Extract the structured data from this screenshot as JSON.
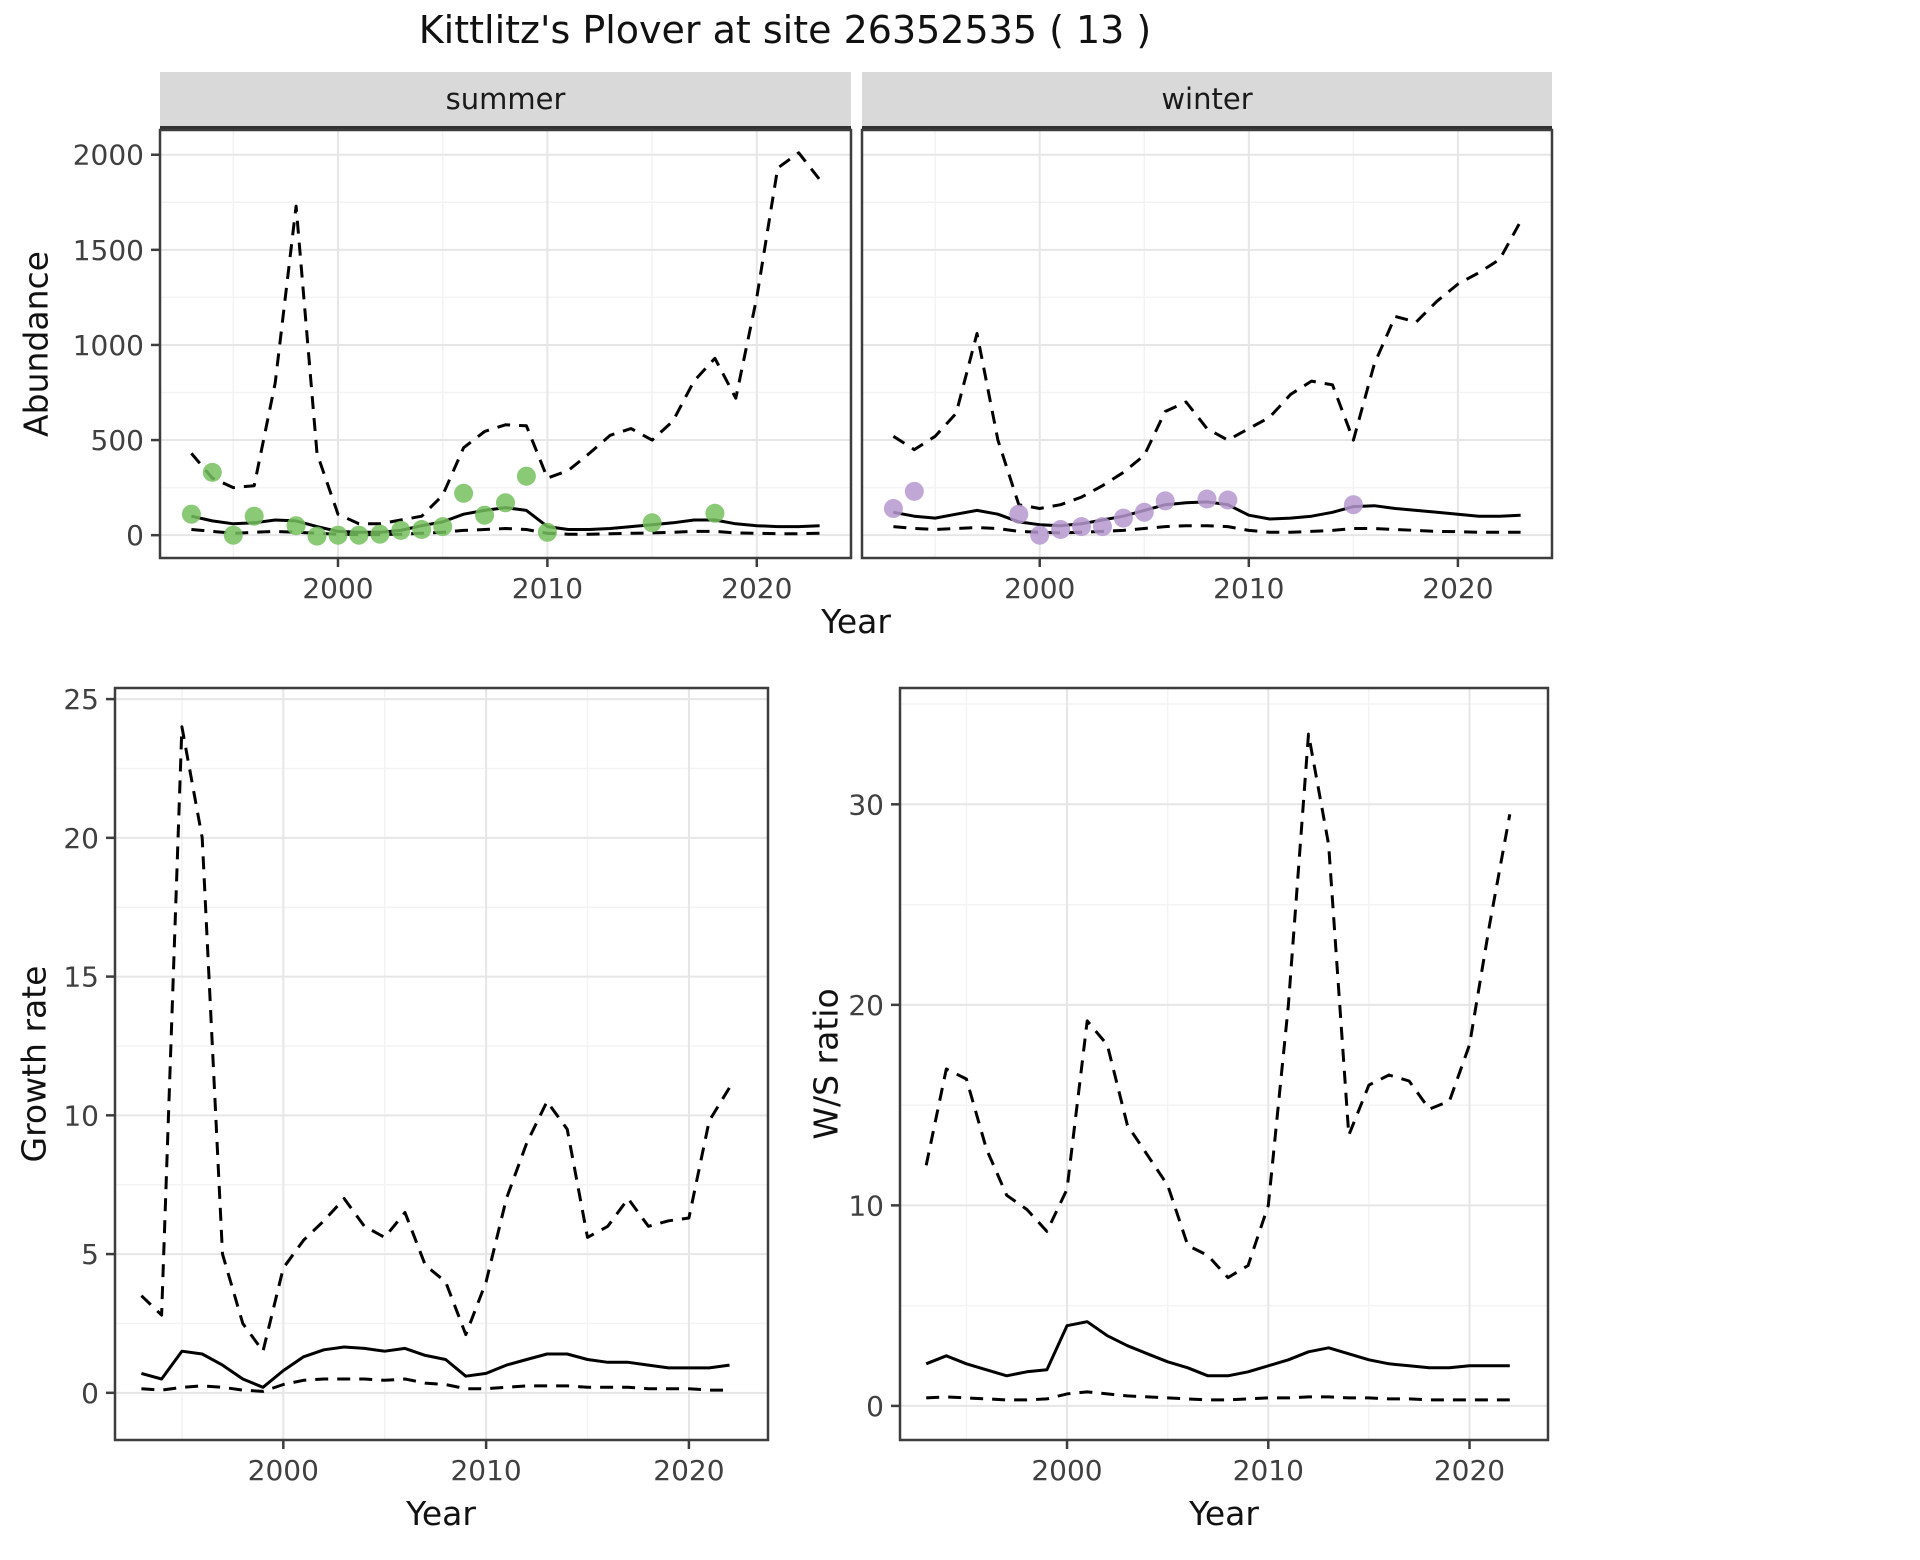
{
  "title": "Kittlitz's Plover at site 26352535 ( 13 )",
  "colors": {
    "summer_point": "#76c05d",
    "winter_point": "#b598cf",
    "line": "#000000",
    "strip_bg": "#d9d9d9",
    "grid_major": "#e6e6e6",
    "grid_minor": "#f3f3f3",
    "panel_border": "#3d3d3d",
    "tick_text": "#404040"
  },
  "chart_data": [
    {
      "id": "abundance-summer",
      "type": "line",
      "facet": "summer",
      "xlabel": "Year",
      "ylabel": "Abundance",
      "xlim": [
        1991.5,
        2024.5
      ],
      "ylim": [
        -120,
        2130
      ],
      "xticks": [
        2000,
        2010,
        2020
      ],
      "yticks": [
        0,
        500,
        1000,
        1500,
        2000
      ],
      "x": [
        1993,
        1994,
        1995,
        1996,
        1997,
        1998,
        1999,
        2000,
        2001,
        2002,
        2003,
        2004,
        2005,
        2006,
        2007,
        2008,
        2009,
        2010,
        2011,
        2012,
        2013,
        2014,
        2015,
        2016,
        2017,
        2018,
        2019,
        2020,
        2021,
        2022,
        2023
      ],
      "series": [
        {
          "name": "upper-ci",
          "style": "dashed",
          "values": [
            430,
            300,
            250,
            260,
            800,
            1730,
            430,
            110,
            60,
            60,
            80,
            100,
            210,
            460,
            545,
            580,
            575,
            300,
            340,
            430,
            525,
            560,
            500,
            600,
            810,
            930,
            720,
            1250,
            1930,
            2010,
            1870
          ]
        },
        {
          "name": "median",
          "style": "solid",
          "values": [
            100,
            75,
            60,
            65,
            80,
            75,
            45,
            20,
            15,
            15,
            25,
            50,
            70,
            110,
            130,
            145,
            130,
            45,
            30,
            30,
            35,
            45,
            55,
            65,
            80,
            80,
            60,
            50,
            45,
            45,
            50
          ]
        },
        {
          "name": "lower-ci",
          "style": "dashed",
          "values": [
            30,
            20,
            10,
            15,
            20,
            15,
            10,
            5,
            3,
            3,
            5,
            10,
            15,
            25,
            30,
            35,
            30,
            10,
            5,
            5,
            8,
            10,
            12,
            15,
            20,
            20,
            12,
            10,
            8,
            8,
            10
          ]
        }
      ],
      "points": {
        "name": "observed-summer",
        "color_key": "summer_point",
        "x": [
          1993,
          1994,
          1995,
          1996,
          1998,
          1999,
          2000,
          2001,
          2002,
          2003,
          2004,
          2005,
          2006,
          2007,
          2008,
          2009,
          2010,
          2015,
          2018
        ],
        "y": [
          110,
          330,
          0,
          100,
          50,
          -5,
          0,
          0,
          5,
          25,
          30,
          45,
          220,
          105,
          170,
          310,
          15,
          65,
          115
        ]
      }
    },
    {
      "id": "abundance-winter",
      "type": "line",
      "facet": "winter",
      "xlabel": "Year",
      "ylabel": "",
      "xlim": [
        1991.5,
        2024.5
      ],
      "ylim": [
        -120,
        2130
      ],
      "xticks": [
        2000,
        2010,
        2020
      ],
      "yticks": [
        0,
        500,
        1000,
        1500,
        2000
      ],
      "x": [
        1993,
        1994,
        1995,
        1996,
        1997,
        1998,
        1999,
        2000,
        2001,
        2002,
        2003,
        2004,
        2005,
        2006,
        2007,
        2008,
        2009,
        2010,
        2011,
        2012,
        2013,
        2014,
        2015,
        2016,
        2017,
        2018,
        2019,
        2020,
        2021,
        2022,
        2023
      ],
      "series": [
        {
          "name": "upper-ci",
          "style": "dashed",
          "values": [
            520,
            450,
            520,
            640,
            1060,
            500,
            160,
            140,
            160,
            200,
            260,
            330,
            420,
            650,
            700,
            560,
            500,
            560,
            620,
            740,
            810,
            790,
            500,
            900,
            1150,
            1120,
            1230,
            1320,
            1380,
            1450,
            1650
          ]
        },
        {
          "name": "median",
          "style": "solid",
          "values": [
            120,
            100,
            90,
            110,
            130,
            110,
            70,
            55,
            50,
            60,
            80,
            100,
            130,
            160,
            170,
            175,
            160,
            105,
            85,
            90,
            100,
            120,
            150,
            155,
            140,
            130,
            120,
            110,
            100,
            100,
            105
          ]
        },
        {
          "name": "lower-ci",
          "style": "dashed",
          "values": [
            45,
            35,
            30,
            35,
            40,
            35,
            20,
            15,
            12,
            15,
            20,
            25,
            35,
            45,
            50,
            50,
            45,
            25,
            15,
            15,
            20,
            25,
            35,
            35,
            30,
            25,
            20,
            18,
            15,
            15,
            15
          ]
        }
      ],
      "points": {
        "name": "observed-winter",
        "color_key": "winter_point",
        "x": [
          1993,
          1994,
          1999,
          2000,
          2001,
          2002,
          2003,
          2004,
          2005,
          2006,
          2008,
          2009,
          2015
        ],
        "y": [
          140,
          230,
          110,
          0,
          30,
          45,
          45,
          90,
          120,
          180,
          190,
          185,
          160
        ]
      }
    },
    {
      "id": "growth-rate",
      "type": "line",
      "facet": "",
      "xlabel": "Year",
      "ylabel": "Growth rate",
      "xlim": [
        1991.7,
        2023.9
      ],
      "ylim": [
        -1.7,
        25.4
      ],
      "xticks": [
        2000,
        2010,
        2020
      ],
      "yticks": [
        0,
        5,
        10,
        15,
        20,
        25
      ],
      "x": [
        1993,
        1994,
        1995,
        1996,
        1997,
        1998,
        1999,
        2000,
        2001,
        2002,
        2003,
        2004,
        2005,
        2006,
        2007,
        2008,
        2009,
        2010,
        2011,
        2012,
        2013,
        2014,
        2015,
        2016,
        2017,
        2018,
        2019,
        2020,
        2021,
        2022
      ],
      "series": [
        {
          "name": "upper-ci",
          "style": "dashed",
          "values": [
            3.5,
            2.8,
            24.0,
            20.0,
            5.0,
            2.5,
            1.5,
            4.5,
            5.5,
            6.2,
            7.0,
            6.0,
            5.6,
            6.5,
            4.6,
            4.0,
            2.1,
            4.0,
            7.0,
            9.0,
            10.5,
            9.5,
            5.6,
            6.0,
            7.0,
            6.0,
            6.2,
            6.3,
            9.8,
            11.0
          ]
        },
        {
          "name": "median",
          "style": "solid",
          "values": [
            0.7,
            0.5,
            1.5,
            1.4,
            1.0,
            0.5,
            0.2,
            0.8,
            1.3,
            1.55,
            1.65,
            1.6,
            1.5,
            1.6,
            1.35,
            1.2,
            0.6,
            0.7,
            1.0,
            1.2,
            1.4,
            1.4,
            1.2,
            1.1,
            1.1,
            1.0,
            0.9,
            0.9,
            0.9,
            1.0
          ]
        },
        {
          "name": "lower-ci",
          "style": "dashed",
          "values": [
            0.15,
            0.1,
            0.2,
            0.25,
            0.2,
            0.1,
            0.05,
            0.3,
            0.45,
            0.5,
            0.5,
            0.5,
            0.45,
            0.5,
            0.35,
            0.3,
            0.15,
            0.15,
            0.2,
            0.25,
            0.25,
            0.25,
            0.2,
            0.2,
            0.2,
            0.15,
            0.15,
            0.15,
            0.1,
            0.1
          ]
        }
      ]
    },
    {
      "id": "ws-ratio",
      "type": "line",
      "facet": "",
      "xlabel": "Year",
      "ylabel": "W/S ratio",
      "xlim": [
        1991.7,
        2023.9
      ],
      "ylim": [
        -1.7,
        35.8
      ],
      "xticks": [
        2000,
        2010,
        2020
      ],
      "yticks": [
        0,
        10,
        20,
        30
      ],
      "x": [
        1993,
        1994,
        1995,
        1996,
        1997,
        1998,
        1999,
        2000,
        2001,
        2002,
        2003,
        2004,
        2005,
        2006,
        2007,
        2008,
        2009,
        2010,
        2011,
        2012,
        2013,
        2014,
        2015,
        2016,
        2017,
        2018,
        2019,
        2020,
        2021,
        2022
      ],
      "series": [
        {
          "name": "upper-ci",
          "style": "dashed",
          "values": [
            12.0,
            16.8,
            16.3,
            12.8,
            10.5,
            9.8,
            8.7,
            10.8,
            19.2,
            18.0,
            14.0,
            12.5,
            11.0,
            8.0,
            7.5,
            6.4,
            7.0,
            10.0,
            20.0,
            33.5,
            28.0,
            13.5,
            16.0,
            16.5,
            16.2,
            14.8,
            15.2,
            18.0,
            24.0,
            29.5
          ]
        },
        {
          "name": "median",
          "style": "solid",
          "values": [
            2.1,
            2.5,
            2.1,
            1.8,
            1.5,
            1.7,
            1.8,
            4.0,
            4.2,
            3.5,
            3.0,
            2.6,
            2.2,
            1.9,
            1.5,
            1.5,
            1.7,
            2.0,
            2.3,
            2.7,
            2.9,
            2.6,
            2.3,
            2.1,
            2.0,
            1.9,
            1.9,
            2.0,
            2.0,
            2.0
          ]
        },
        {
          "name": "lower-ci",
          "style": "dashed",
          "values": [
            0.4,
            0.45,
            0.4,
            0.35,
            0.3,
            0.3,
            0.35,
            0.6,
            0.7,
            0.6,
            0.5,
            0.45,
            0.4,
            0.35,
            0.3,
            0.3,
            0.35,
            0.4,
            0.4,
            0.45,
            0.45,
            0.4,
            0.4,
            0.35,
            0.35,
            0.3,
            0.3,
            0.3,
            0.3,
            0.3
          ]
        }
      ]
    }
  ]
}
